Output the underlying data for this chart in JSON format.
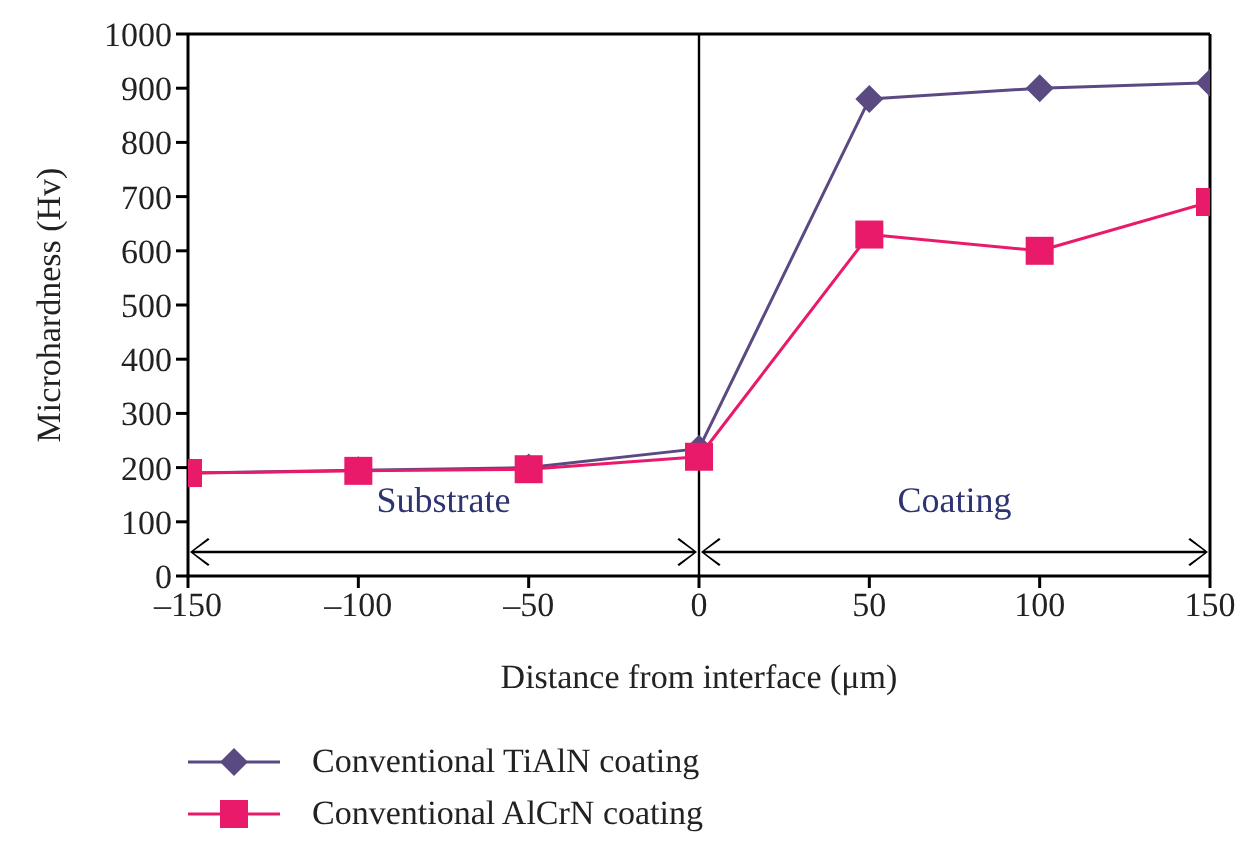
{
  "chart_data": {
    "type": "line",
    "xlabel": "Distance from interface (μm)",
    "ylabel": "Microhardness (Hv)",
    "x": [
      -150,
      -100,
      -50,
      0,
      50,
      100,
      150
    ],
    "series": [
      {
        "name": "Conventional TiAlN coating",
        "color": "#5b4a82",
        "marker": "diamond",
        "values": [
          190,
          195,
          200,
          235,
          880,
          900,
          910
        ]
      },
      {
        "name": "Conventional AlCrN coating",
        "color": "#ea1a6a",
        "marker": "square",
        "values": [
          190,
          194,
          197,
          220,
          630,
          600,
          690
        ]
      }
    ],
    "xlim": [
      -150,
      150
    ],
    "xticks": [
      {
        "value": -150,
        "label": "–150"
      },
      {
        "value": -100,
        "label": "–100"
      },
      {
        "value": -50,
        "label": "–50"
      },
      0,
      50,
      100,
      150
    ],
    "ylim": [
      0,
      1000
    ],
    "yticks": [
      0,
      100,
      200,
      300,
      400,
      500,
      600,
      700,
      800,
      900,
      1000
    ],
    "grid": false,
    "legend": "bottom left",
    "line_style": "solid",
    "ref_lines": [
      {
        "axis": "x",
        "value": 0,
        "color": "#000000"
      }
    ],
    "annotations": [
      "Substrate",
      "Coating"
    ]
  }
}
